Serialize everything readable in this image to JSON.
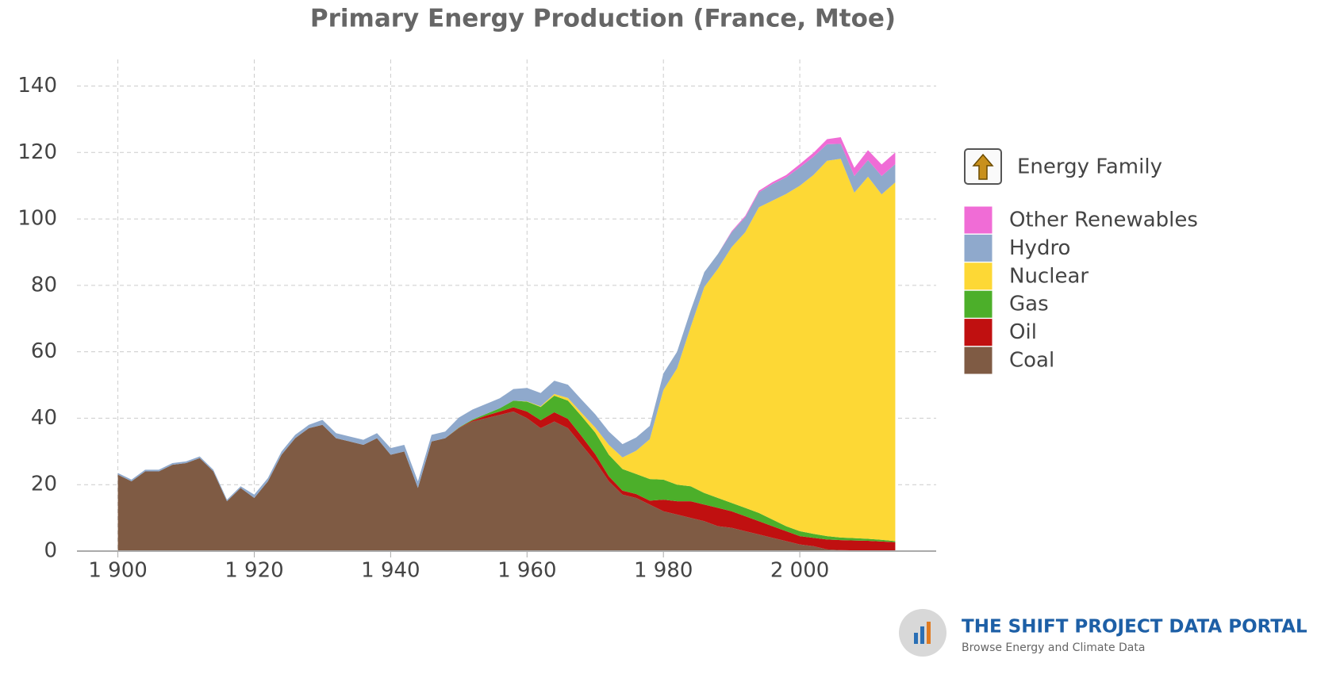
{
  "chart_data": {
    "type": "stacked_area",
    "title": "Primary Energy Production (France, Mtoe)",
    "legend_title": "Energy Family",
    "legend": "right",
    "grid": true,
    "x": [
      1900,
      1902,
      1904,
      1906,
      1908,
      1910,
      1912,
      1914,
      1916,
      1918,
      1920,
      1922,
      1924,
      1926,
      1928,
      1930,
      1932,
      1934,
      1936,
      1938,
      1940,
      1942,
      1944,
      1946,
      1948,
      1950,
      1952,
      1954,
      1956,
      1958,
      1960,
      1962,
      1964,
      1966,
      1968,
      1970,
      1972,
      1974,
      1976,
      1978,
      1980,
      1982,
      1984,
      1986,
      1988,
      1990,
      1992,
      1994,
      1996,
      1998,
      2000,
      2002,
      2004,
      2006,
      2008,
      2010,
      2012,
      2014
    ],
    "xlim": [
      1894,
      2020
    ],
    "xticks": [
      {
        "value": 1900,
        "label": "1 900"
      },
      {
        "value": 1920,
        "label": "1 920"
      },
      {
        "value": 1940,
        "label": "1 940"
      },
      {
        "value": 1960,
        "label": "1 960"
      },
      {
        "value": 1980,
        "label": "1 980"
      },
      {
        "value": 2000,
        "label": "2 000"
      }
    ],
    "ylim": [
      0,
      148
    ],
    "yticks": [
      0,
      20,
      40,
      60,
      80,
      100,
      120,
      140
    ],
    "series": [
      {
        "name": "Coal",
        "color": "#7f5b44",
        "values": [
          23,
          21,
          24,
          24,
          26,
          26.5,
          28,
          24,
          15,
          19,
          16,
          21,
          29,
          34,
          37,
          38,
          34,
          33,
          32,
          34,
          29,
          30,
          19,
          33,
          34,
          37,
          39,
          40,
          41,
          42,
          40,
          37,
          39,
          37,
          32,
          27,
          21,
          17,
          16,
          14,
          12,
          11,
          10,
          9,
          7.5,
          7,
          6,
          5,
          4,
          3,
          2,
          1.5,
          0.5,
          0.3,
          0.2,
          0.1,
          0.1,
          0.1
        ]
      },
      {
        "name": "Oil",
        "color": "#c01010",
        "values": [
          0,
          0,
          0,
          0,
          0,
          0,
          0,
          0,
          0,
          0,
          0,
          0,
          0,
          0,
          0,
          0,
          0,
          0,
          0,
          0,
          0,
          0,
          0,
          0,
          0,
          0.1,
          0.3,
          0.8,
          1,
          1.3,
          2,
          2.4,
          2.8,
          2.8,
          2.6,
          2.2,
          1.5,
          1.2,
          1.2,
          1.2,
          3.5,
          4,
          5,
          5,
          5.5,
          5,
          4.5,
          4,
          3.5,
          3,
          2.5,
          2.5,
          3,
          3,
          3,
          3,
          2.8,
          2.6
        ]
      },
      {
        "name": "Gas",
        "color": "#4caf2a",
        "values": [
          0,
          0,
          0,
          0,
          0,
          0,
          0,
          0,
          0,
          0,
          0,
          0,
          0,
          0,
          0,
          0,
          0,
          0,
          0,
          0,
          0,
          0,
          0,
          0,
          0,
          0.1,
          0.3,
          0.5,
          1,
          2,
          3,
          4,
          5,
          5.5,
          6,
          6.5,
          6.5,
          6.5,
          6,
          6.5,
          6,
          5,
          4.5,
          3.5,
          3,
          2.5,
          2.5,
          2.5,
          2,
          1.5,
          1.5,
          1.2,
          1,
          0.8,
          0.7,
          0.6,
          0.5,
          0.3
        ]
      },
      {
        "name": "Nuclear",
        "color": "#fdd835",
        "values": [
          0,
          0,
          0,
          0,
          0,
          0,
          0,
          0,
          0,
          0,
          0,
          0,
          0,
          0,
          0,
          0,
          0,
          0,
          0,
          0,
          0,
          0,
          0,
          0,
          0,
          0,
          0,
          0,
          0,
          0,
          0.1,
          0.2,
          0.5,
          0.8,
          1,
          1.5,
          3,
          3.5,
          7,
          12,
          27,
          35,
          48,
          62,
          69,
          77,
          83,
          92,
          96,
          100,
          104,
          108,
          113,
          114,
          104,
          109,
          104,
          108
        ]
      },
      {
        "name": "Hydro",
        "color": "#8fa9cc",
        "values": [
          0.5,
          0.5,
          0.5,
          0.5,
          0.5,
          0.5,
          0.5,
          0.5,
          0.5,
          0.5,
          1,
          1,
          1,
          1,
          1,
          1.5,
          1.5,
          1.5,
          1.5,
          1.5,
          2,
          2,
          2,
          2,
          2,
          3,
          3,
          3,
          3,
          3.5,
          4,
          4,
          4,
          4,
          4,
          4,
          4,
          4,
          4,
          4,
          5,
          5,
          5,
          4.5,
          4.5,
          4.5,
          4.5,
          4.5,
          5,
          5,
          5.5,
          5.5,
          5,
          4.5,
          5,
          5,
          5.5,
          5.5
        ]
      },
      {
        "name": "Other Renewables",
        "color": "#f06cd6",
        "values": [
          0,
          0,
          0,
          0,
          0,
          0,
          0,
          0,
          0,
          0,
          0,
          0,
          0,
          0,
          0,
          0,
          0,
          0,
          0,
          0,
          0,
          0,
          0,
          0,
          0,
          0,
          0,
          0,
          0,
          0,
          0,
          0,
          0,
          0,
          0,
          0,
          0,
          0,
          0,
          0,
          0,
          0,
          0,
          0,
          0,
          0.3,
          0.4,
          0.5,
          0.6,
          0.7,
          1,
          1.2,
          1.5,
          2,
          2.5,
          3,
          3.5,
          3.5
        ]
      }
    ]
  },
  "logo": {
    "title": "THE SHIFT PROJECT DATA PORTAL",
    "subtitle": "Browse Energy and Climate Data"
  }
}
